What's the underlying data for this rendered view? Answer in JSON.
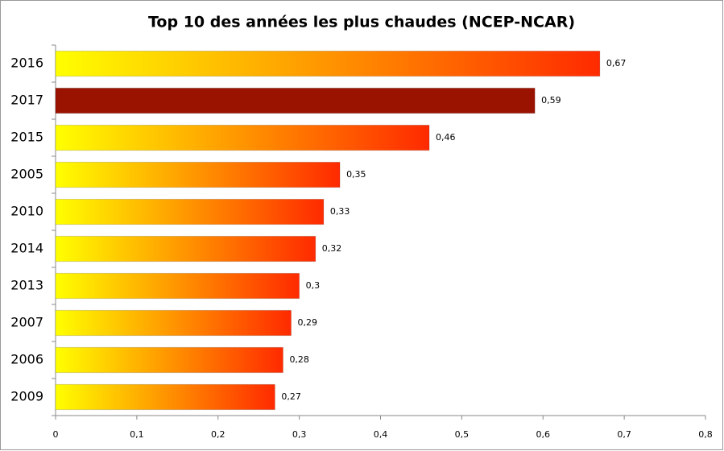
{
  "chart_data": {
    "type": "hbar",
    "title": "Top 10 des années les plus chaudes (NCEP-NCAR)",
    "categories": [
      "2016",
      "2017",
      "2015",
      "2005",
      "2010",
      "2014",
      "2013",
      "2007",
      "2006",
      "2009"
    ],
    "values": [
      0.67,
      0.59,
      0.46,
      0.35,
      0.33,
      0.32,
      0.3,
      0.29,
      0.28,
      0.27
    ],
    "value_labels": [
      "0,67",
      "0,59",
      "0,46",
      "0,35",
      "0,33",
      "0,32",
      "0,3",
      "0,29",
      "0,28",
      "0,27"
    ],
    "colors": [
      "#ff2a00",
      "#9a1200",
      "#ff2a00",
      "#ff2a00",
      "#ff2a00",
      "#ff2a00",
      "#ff2a00",
      "#ff2a00",
      "#ff2a00",
      "#ff2a00"
    ],
    "gradient": [
      true,
      false,
      true,
      true,
      true,
      true,
      true,
      true,
      true,
      true
    ],
    "gradient_start": "#ffff00",
    "xlim": [
      0,
      0.8
    ],
    "xticks": [
      0,
      {
        "value": 0.1,
        "label": "0,1"
      },
      {
        "value": 0.2,
        "label": "0,2"
      },
      {
        "value": 0.3,
        "label": "0,3"
      },
      {
        "value": 0.4,
        "label": "0,4"
      },
      {
        "value": 0.5,
        "label": "0,5"
      },
      {
        "value": 0.6,
        "label": "0,6"
      },
      {
        "value": 0.7,
        "label": "0,7"
      },
      {
        "value": 0.8,
        "label": "0,8"
      }
    ]
  }
}
